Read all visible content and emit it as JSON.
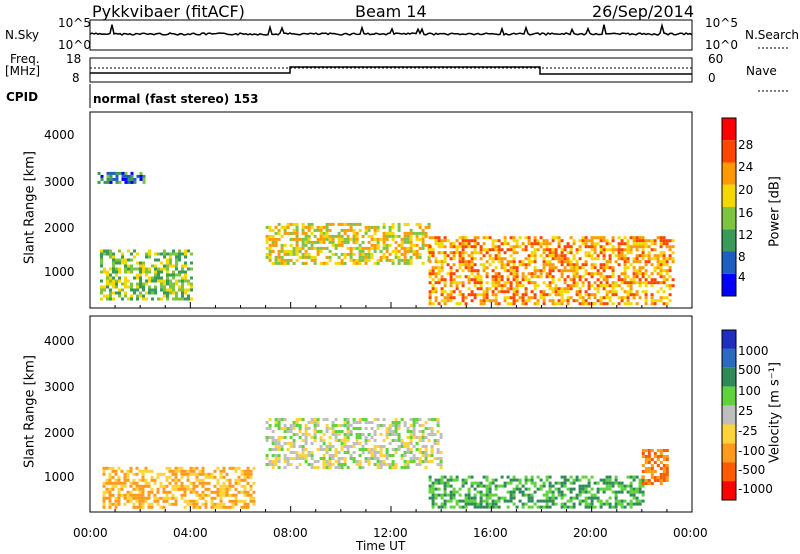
{
  "header": {
    "radar": "Pykkvibaer (fitACF)",
    "beam": "Beam 14",
    "date": "26/Sep/2014"
  },
  "top_panel": {
    "left_label": "N.Sky",
    "right_label": "N.Search",
    "left_ticks": [
      "10^5",
      "10^0"
    ],
    "right_ticks": [
      "10^5",
      "10^0"
    ]
  },
  "freq_panel": {
    "left_label_1": "Freq.",
    "left_label_2": "[MHz]",
    "right_label": "Nave",
    "left_ticks": [
      "18",
      "8"
    ],
    "right_ticks": [
      "60",
      "0"
    ]
  },
  "cpid": {
    "label": "CPID",
    "text": "normal (fast stereo) 153"
  },
  "power_panel": {
    "ylabel": "Slant Range [km]",
    "cbar_label": "Power [dB]",
    "yticks": [
      "4000",
      "3000",
      "2000",
      "1000"
    ],
    "cbar_ticks": [
      "28",
      "24",
      "20",
      "16",
      "12",
      "8",
      "4"
    ],
    "cbar_colors": [
      "#ff0000",
      "#ff4500",
      "#ff9a00",
      "#f5d800",
      "#7cc442",
      "#3a9a57",
      "#1c5fc0",
      "#0000ff"
    ]
  },
  "velocity_panel": {
    "ylabel": "Slant Range [km]",
    "cbar_label": "Velocity [m s⁻¹]",
    "yticks": [
      "4000",
      "3000",
      "2000",
      "1000"
    ],
    "cbar_ticks": [
      "1000",
      "500",
      "100",
      "25",
      "-25",
      "-100",
      "-500",
      "-1000"
    ],
    "cbar_colors": [
      "#1e2fbf",
      "#2a6abf",
      "#2e8b57",
      "#5fd33a",
      "#bebebe",
      "#ffd43a",
      "#ff9a1a",
      "#ff5a00",
      "#ff0000"
    ]
  },
  "xaxis": {
    "ticks": [
      "00:00",
      "04:00",
      "08:00",
      "12:00",
      "16:00",
      "20:00",
      "00:00"
    ],
    "label": "Time UT"
  },
  "chart_data": {
    "type": "heatmap",
    "x_range_hours": [
      0,
      24
    ],
    "y_range_km": [
      180,
      4600
    ],
    "power_regions": [
      {
        "t0": 0.4,
        "t1": 4.0,
        "r0": 400,
        "r1": 1500,
        "level_db": 14
      },
      {
        "t0": 7.0,
        "t1": 13.5,
        "r0": 1200,
        "r1": 2100,
        "level_db": 18
      },
      {
        "t0": 13.5,
        "t1": 23.2,
        "r0": 300,
        "r1": 1800,
        "level_db": 22
      },
      {
        "t0": 0.3,
        "t1": 2.2,
        "r0": 3000,
        "r1": 3250,
        "level_db": 8
      }
    ],
    "velocity_regions": [
      {
        "t0": 7.0,
        "t1": 14.0,
        "r0": 1200,
        "r1": 2300,
        "velocity": 0
      },
      {
        "t0": 13.5,
        "t1": 22.0,
        "r0": 300,
        "r1": 1000,
        "velocity": 100
      },
      {
        "t0": 22.0,
        "t1": 23.0,
        "r0": 800,
        "r1": 1600,
        "velocity": -500
      },
      {
        "t0": 0.5,
        "t1": 6.5,
        "r0": 300,
        "r1": 1200,
        "velocity": -100
      }
    ]
  }
}
